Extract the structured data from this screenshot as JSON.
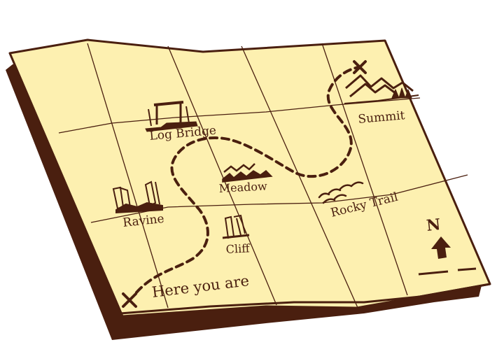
{
  "colors": {
    "paper": "#fdf0b0",
    "ink": "#4a1f0f",
    "shadow": "#4a1f0f"
  },
  "labels": {
    "log_bridge": "Log Bridge",
    "summit": "Summit",
    "meadow": "Meadow",
    "rocky_trail": "Rocky Trail",
    "ravine": "Ravine",
    "cliff": "Cliff",
    "start": "Here you are",
    "north": "N"
  },
  "icons": {
    "start_marker": "x-mark-icon",
    "end_marker": "x-mark-icon",
    "north_arrow": "north-arrow-icon"
  }
}
